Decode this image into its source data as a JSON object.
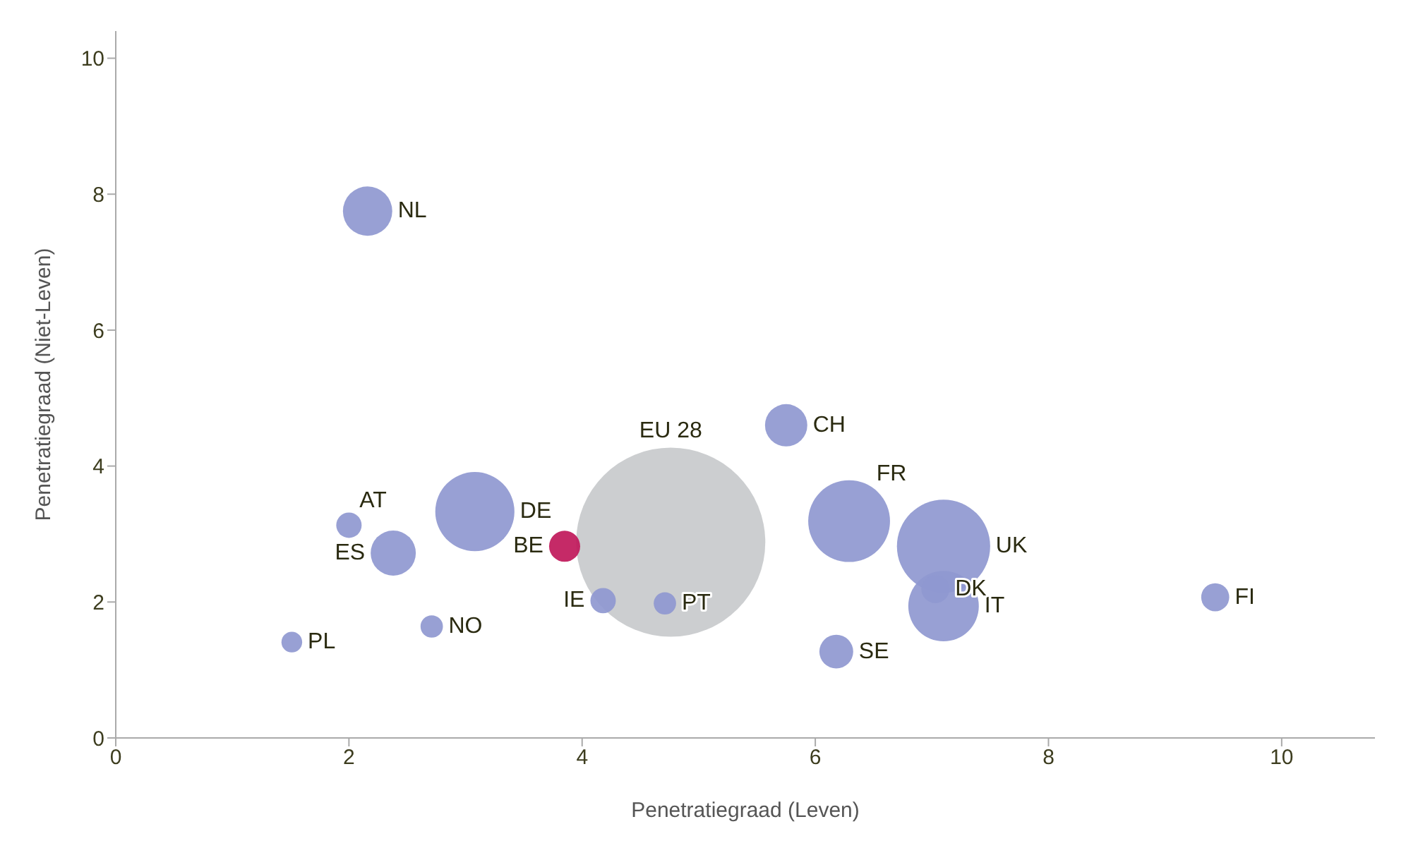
{
  "chart_data": {
    "type": "bubble",
    "xlabel": "Penetratiegraad (Leven)",
    "ylabel": "Penetratiegraad (Niet-Leven)",
    "xlim": [
      0,
      10.8
    ],
    "ylim": [
      0,
      10.4
    ],
    "xticks": [
      0,
      2,
      4,
      6,
      8,
      10
    ],
    "yticks": [
      0,
      2,
      4,
      6,
      8,
      10
    ],
    "grid": false,
    "legend": false,
    "series": [
      {
        "name": "EU 28",
        "color": "#c8cacc",
        "x": [
          4.76
        ],
        "values": [
          2.88
        ],
        "sizes": [
          1
        ]
      },
      {
        "name": "NL",
        "color": "#8f98d0",
        "x": [
          2.16
        ],
        "values": [
          7.75
        ],
        "sizes": [
          0.068
        ]
      },
      {
        "name": "AT",
        "color": "#8f98d0",
        "x": [
          2.0
        ],
        "values": [
          3.13
        ],
        "sizes": [
          0.018
        ]
      },
      {
        "name": "ES",
        "color": "#8f98d0",
        "x": [
          2.38
        ],
        "values": [
          2.72
        ],
        "sizes": [
          0.057
        ]
      },
      {
        "name": "DE",
        "color": "#8f98d0",
        "x": [
          3.08
        ],
        "values": [
          3.33
        ],
        "sizes": [
          0.175
        ]
      },
      {
        "name": "BE",
        "color": "#c0185a",
        "x": [
          3.85
        ],
        "values": [
          2.82
        ],
        "sizes": [
          0.027
        ]
      },
      {
        "name": "IE",
        "color": "#8f98d0",
        "x": [
          4.18
        ],
        "values": [
          2.02
        ],
        "sizes": [
          0.018
        ]
      },
      {
        "name": "PT",
        "color": "#8f98d0",
        "x": [
          4.71
        ],
        "values": [
          1.98
        ],
        "sizes": [
          0.014
        ]
      },
      {
        "name": "NO",
        "color": "#8f98d0",
        "x": [
          2.71
        ],
        "values": [
          1.64
        ],
        "sizes": [
          0.014
        ]
      },
      {
        "name": "PL",
        "color": "#8f98d0",
        "x": [
          1.51
        ],
        "values": [
          1.41
        ],
        "sizes": [
          0.012
        ]
      },
      {
        "name": "CH",
        "color": "#8f98d0",
        "x": [
          5.75
        ],
        "values": [
          4.6
        ],
        "sizes": [
          0.05
        ]
      },
      {
        "name": "FR",
        "color": "#8f98d0",
        "x": [
          6.29
        ],
        "values": [
          3.19
        ],
        "sizes": [
          0.187
        ]
      },
      {
        "name": "UK",
        "color": "#8f98d0",
        "x": [
          7.1
        ],
        "values": [
          2.82
        ],
        "sizes": [
          0.243
        ]
      },
      {
        "name": "IT",
        "color": "#8f98d0",
        "x": [
          7.1
        ],
        "values": [
          1.94
        ],
        "sizes": [
          0.139
        ]
      },
      {
        "name": "DK",
        "color": "#8f98d0",
        "x": [
          7.03
        ],
        "values": [
          2.19
        ],
        "sizes": [
          0.022
        ]
      },
      {
        "name": "SE",
        "color": "#8f98d0",
        "x": [
          6.18
        ],
        "values": [
          1.27
        ],
        "sizes": [
          0.032
        ]
      },
      {
        "name": "FI",
        "color": "#8f98d0",
        "x": [
          9.43
        ],
        "values": [
          2.07
        ],
        "sizes": [
          0.022
        ]
      }
    ]
  }
}
